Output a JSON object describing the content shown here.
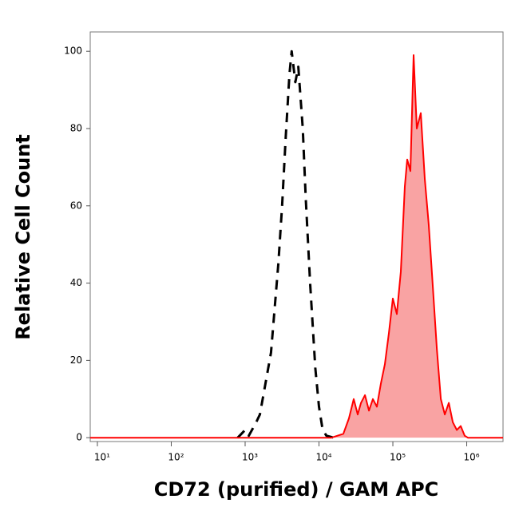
{
  "chart_data": {
    "type": "histogram",
    "x_label": "CD72 (purified) / GAM APC",
    "y_label": "Relative Cell Count",
    "xscale": "log",
    "xlim": [
      8,
      3100000
    ],
    "ylim": [
      -1,
      105
    ],
    "xticks": [
      {
        "value": 10,
        "label": "10¹"
      },
      {
        "value": 100,
        "label": "10²"
      },
      {
        "value": 1000,
        "label": "10³"
      },
      {
        "value": 10000,
        "label": "10⁴"
      },
      {
        "value": 100000,
        "label": "10⁵"
      },
      {
        "value": 1000000,
        "label": "10⁶"
      }
    ],
    "yticks": [
      0,
      20,
      40,
      60,
      80,
      100
    ],
    "series": [
      {
        "color": "#000000",
        "dashed": true,
        "x": [
          794,
          1000,
          1122,
          1413,
          1585,
          2239,
          2818,
          3162,
          3548,
          3981,
          4266,
          4786,
          5248,
          6026,
          6607,
          7586,
          8913,
          10000,
          11220,
          12589,
          15849
        ],
        "values": [
          0,
          2,
          0.5,
          4,
          6,
          22,
          45,
          60,
          78,
          94,
          100,
          92,
          96,
          80,
          62,
          40,
          18,
          8,
          2,
          0.5,
          0
        ]
      },
      {
        "color": "#ff0000",
        "fill_color": "#f9a3a3",
        "x": [
          8,
          14720,
          21380,
          25410,
          29510,
          33420,
          36980,
          41880,
          47430,
          53700,
          60810,
          68870,
          77980,
          88310,
          100000,
          113200,
          128200,
          145200,
          156600,
          173000,
          191000,
          211000,
          239000,
          270400,
          306200,
          347500,
          393600,
          445700,
          504700,
          571500,
          647100,
          732800,
          829800,
          939700,
          1038000,
          3100000
        ],
        "values": [
          0,
          0,
          1,
          5,
          10,
          6,
          9,
          11,
          7,
          10,
          8,
          14,
          19,
          27,
          36,
          32,
          43,
          65,
          72,
          69,
          99,
          80,
          84,
          67,
          55,
          39,
          23,
          10,
          6,
          9,
          4,
          2,
          3,
          0.5,
          0,
          0
        ]
      }
    ]
  }
}
